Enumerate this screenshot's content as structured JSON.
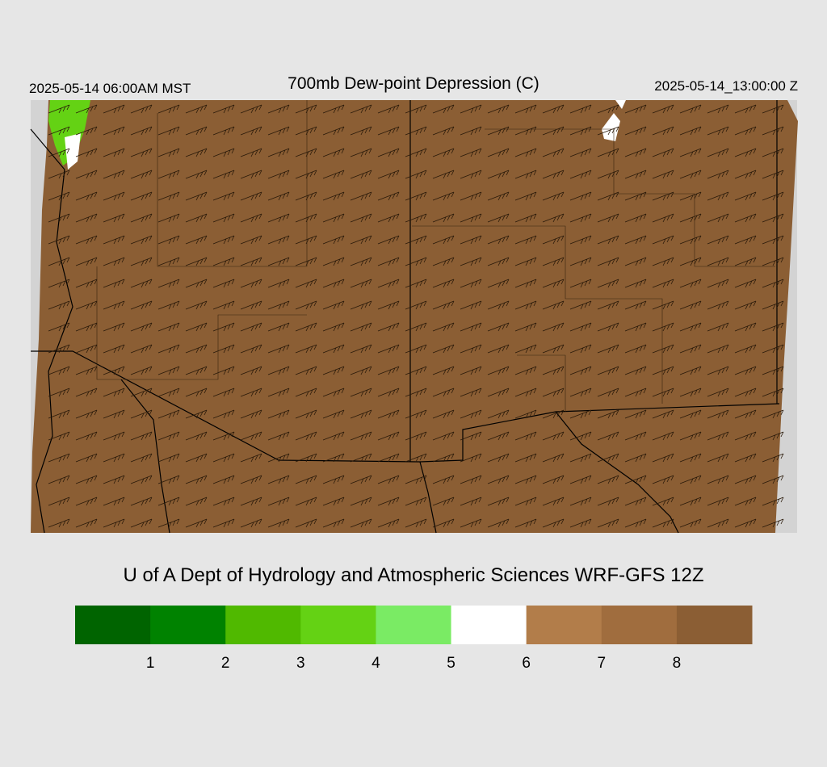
{
  "header": {
    "valid_local": "2025-05-14 06:00AM MST",
    "title": "700mb Dew-point Depression (C)",
    "valid_utc": "2025-05-14_13:00:00 Z"
  },
  "credit": "U of A Dept of Hydrology and Atmospheric Sciences WRF-GFS 12Z",
  "colorbar": {
    "colors": [
      "#006400",
      "#008200",
      "#50b900",
      "#64d214",
      "#7aeb64",
      "#ffffff",
      "#b27d4a",
      "#a06d3e",
      "#8b5e34"
    ],
    "ticks": [
      1,
      2,
      3,
      4,
      5,
      6,
      7,
      8
    ]
  }
}
